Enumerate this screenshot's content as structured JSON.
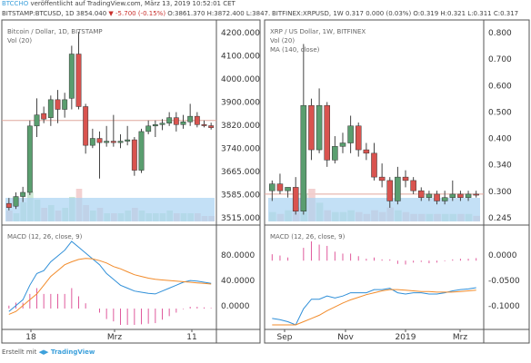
{
  "header": {
    "user": "BTCCHO",
    "published": "veröffentlicht auf TradingView.com, März 13, 2019 10:52:01 CET"
  },
  "left_info": {
    "symbol": "BITSTAMP:BTCUSD, 1D",
    "last": "3854.040",
    "change": "▼ -5.700 (-0.15%)",
    "ohlc": "O:3861.370 H:3872.400 L:3847."
  },
  "right_info": {
    "symbol": "BITFINEX:XRPUSD, 1W",
    "ohlc": "0.317 0.000 (0.03%) O:0.319 H:0.321 L:0.311 C:0.317"
  },
  "left_chart": {
    "title": "Bitcoin / Dollar, 1D, BITSTAMP",
    "vol_label": "Vol (20)",
    "price_ticks": [
      "4200.000",
      "4100.000",
      "4000.000",
      "3900.000",
      "3820.000",
      "3740.000",
      "3665.000",
      "3585.000",
      "3515.000"
    ],
    "macd_label": "MACD (12, 26, close, 9)",
    "macd_ticks": [
      "80.0000",
      "40.0000",
      "0.0000"
    ],
    "x_ticks": [
      "18",
      "Mrz",
      "11"
    ]
  },
  "right_chart": {
    "title": "XRP / US Dollar, 1W, BITFINEX",
    "vol_label": "Vol (20)",
    "ma_label": "MA (140, close)",
    "price_ticks": [
      "0.800",
      "0.700",
      "0.600",
      "0.500",
      "0.400",
      "0.340",
      "0.300",
      "0.245"
    ],
    "macd_label": "MACD (12, 26, close, 9)",
    "macd_ticks": [
      "0.0000",
      "-0.0500",
      "-0.1000"
    ],
    "x_ticks": [
      "Sep",
      "Nov",
      "2019",
      "Mrz"
    ]
  },
  "chart_data": [
    {
      "type": "candlestick",
      "title": "Bitcoin / Dollar, 1D, BITSTAMP",
      "ylim": [
        3515,
        4230
      ],
      "candles": [
        {
          "o": 3580,
          "h": 3600,
          "l": 3555,
          "c": 3565
        },
        {
          "o": 3570,
          "h": 3620,
          "l": 3560,
          "c": 3605
        },
        {
          "o": 3605,
          "h": 3640,
          "l": 3585,
          "c": 3620
        },
        {
          "o": 3620,
          "h": 3880,
          "l": 3610,
          "c": 3860
        },
        {
          "o": 3860,
          "h": 3960,
          "l": 3820,
          "c": 3900
        },
        {
          "o": 3905,
          "h": 3930,
          "l": 3870,
          "c": 3885
        },
        {
          "o": 3890,
          "h": 3970,
          "l": 3860,
          "c": 3955
        },
        {
          "o": 3955,
          "h": 3990,
          "l": 3870,
          "c": 3920
        },
        {
          "o": 3920,
          "h": 3980,
          "l": 3890,
          "c": 3955
        },
        {
          "o": 3960,
          "h": 4150,
          "l": 3920,
          "c": 4120
        },
        {
          "o": 4120,
          "h": 4200,
          "l": 3920,
          "c": 3930
        },
        {
          "o": 3930,
          "h": 3940,
          "l": 3760,
          "c": 3790
        },
        {
          "o": 3790,
          "h": 3850,
          "l": 3780,
          "c": 3815
        },
        {
          "o": 3815,
          "h": 3840,
          "l": 3670,
          "c": 3800
        },
        {
          "o": 3800,
          "h": 3860,
          "l": 3785,
          "c": 3805
        },
        {
          "o": 3805,
          "h": 3900,
          "l": 3785,
          "c": 3800
        },
        {
          "o": 3800,
          "h": 3830,
          "l": 3780,
          "c": 3805
        },
        {
          "o": 3805,
          "h": 3860,
          "l": 3790,
          "c": 3810
        },
        {
          "o": 3810,
          "h": 3820,
          "l": 3680,
          "c": 3700
        },
        {
          "o": 3700,
          "h": 3850,
          "l": 3690,
          "c": 3840
        },
        {
          "o": 3840,
          "h": 3880,
          "l": 3830,
          "c": 3860
        },
        {
          "o": 3860,
          "h": 3880,
          "l": 3820,
          "c": 3865
        },
        {
          "o": 3865,
          "h": 3885,
          "l": 3845,
          "c": 3870
        },
        {
          "o": 3870,
          "h": 3910,
          "l": 3860,
          "c": 3890
        },
        {
          "o": 3890,
          "h": 3910,
          "l": 3840,
          "c": 3865
        },
        {
          "o": 3865,
          "h": 3900,
          "l": 3850,
          "c": 3875
        },
        {
          "o": 3875,
          "h": 3940,
          "l": 3860,
          "c": 3895
        },
        {
          "o": 3895,
          "h": 3910,
          "l": 3855,
          "c": 3865
        },
        {
          "o": 3865,
          "h": 3880,
          "l": 3855,
          "c": 3861
        },
        {
          "o": 3861,
          "h": 3872,
          "l": 3847,
          "c": 3854
        }
      ],
      "volume": [
        20,
        15,
        35,
        55,
        40,
        25,
        30,
        20,
        25,
        45,
        60,
        30,
        20,
        25,
        15,
        15,
        15,
        20,
        25,
        20,
        15,
        15,
        15,
        20,
        15,
        15,
        15,
        15,
        10,
        10
      ],
      "macd": [
        -5,
        5,
        15,
        40,
        60,
        65,
        80,
        90,
        100,
        115,
        105,
        95,
        85,
        75,
        60,
        50,
        40,
        35,
        30,
        28,
        26,
        25,
        30,
        35,
        40,
        45,
        48,
        47,
        45,
        43
      ],
      "signal": [
        -10,
        -5,
        5,
        15,
        25,
        40,
        55,
        65,
        75,
        80,
        84,
        86,
        85,
        82,
        78,
        72,
        68,
        63,
        58,
        55,
        52,
        50,
        49,
        48,
        47,
        46,
        45,
        44,
        43,
        42
      ],
      "histogram": [
        5,
        10,
        10,
        25,
        35,
        25,
        25,
        25,
        25,
        35,
        21,
        9,
        0,
        -7,
        -18,
        -22,
        -28,
        -28,
        -28,
        -27,
        -26,
        -25,
        -19,
        -13,
        -7,
        -1,
        3,
        3,
        2,
        1
      ]
    },
    {
      "type": "candlestick",
      "title": "XRP / US Dollar, 1W, BITFINEX",
      "ylim": [
        0.24,
        0.82
      ],
      "candles": [
        {
          "o": 0.33,
          "h": 0.36,
          "l": 0.3,
          "c": 0.35
        },
        {
          "o": 0.35,
          "h": 0.38,
          "l": 0.32,
          "c": 0.33
        },
        {
          "o": 0.33,
          "h": 0.34,
          "l": 0.31,
          "c": 0.34
        },
        {
          "o": 0.34,
          "h": 0.37,
          "l": 0.26,
          "c": 0.27
        },
        {
          "o": 0.27,
          "h": 0.76,
          "l": 0.26,
          "c": 0.58
        },
        {
          "o": 0.58,
          "h": 0.6,
          "l": 0.42,
          "c": 0.45
        },
        {
          "o": 0.45,
          "h": 0.63,
          "l": 0.44,
          "c": 0.58
        },
        {
          "o": 0.58,
          "h": 0.59,
          "l": 0.4,
          "c": 0.42
        },
        {
          "o": 0.42,
          "h": 0.49,
          "l": 0.41,
          "c": 0.46
        },
        {
          "o": 0.46,
          "h": 0.5,
          "l": 0.44,
          "c": 0.47
        },
        {
          "o": 0.47,
          "h": 0.55,
          "l": 0.44,
          "c": 0.52
        },
        {
          "o": 0.52,
          "h": 0.53,
          "l": 0.43,
          "c": 0.45
        },
        {
          "o": 0.45,
          "h": 0.47,
          "l": 0.42,
          "c": 0.44
        },
        {
          "o": 0.44,
          "h": 0.47,
          "l": 0.36,
          "c": 0.37
        },
        {
          "o": 0.37,
          "h": 0.41,
          "l": 0.34,
          "c": 0.36
        },
        {
          "o": 0.36,
          "h": 0.37,
          "l": 0.28,
          "c": 0.3
        },
        {
          "o": 0.3,
          "h": 0.4,
          "l": 0.29,
          "c": 0.37
        },
        {
          "o": 0.37,
          "h": 0.39,
          "l": 0.34,
          "c": 0.36
        },
        {
          "o": 0.36,
          "h": 0.37,
          "l": 0.32,
          "c": 0.33
        },
        {
          "o": 0.33,
          "h": 0.34,
          "l": 0.3,
          "c": 0.31
        },
        {
          "o": 0.31,
          "h": 0.33,
          "l": 0.3,
          "c": 0.32
        },
        {
          "o": 0.32,
          "h": 0.33,
          "l": 0.29,
          "c": 0.3
        },
        {
          "o": 0.3,
          "h": 0.33,
          "l": 0.29,
          "c": 0.31
        },
        {
          "o": 0.31,
          "h": 0.36,
          "l": 0.3,
          "c": 0.32
        },
        {
          "o": 0.32,
          "h": 0.33,
          "l": 0.3,
          "c": 0.31
        },
        {
          "o": 0.31,
          "h": 0.33,
          "l": 0.3,
          "c": 0.32
        },
        {
          "o": 0.32,
          "h": 0.33,
          "l": 0.31,
          "c": 0.317
        }
      ],
      "ma": 0.32,
      "volume": [
        10,
        8,
        12,
        15,
        30,
        35,
        20,
        12,
        10,
        10,
        12,
        10,
        8,
        12,
        10,
        15,
        12,
        10,
        8,
        8,
        8,
        8,
        8,
        8,
        8,
        8,
        6
      ],
      "macd": [
        -0.09,
        -0.092,
        -0.095,
        -0.1,
        -0.075,
        -0.06,
        -0.06,
        -0.055,
        -0.058,
        -0.055,
        -0.05,
        -0.05,
        -0.05,
        -0.045,
        -0.045,
        -0.043,
        -0.05,
        -0.052,
        -0.05,
        -0.05,
        -0.052,
        -0.052,
        -0.05,
        -0.047,
        -0.045,
        -0.044,
        -0.042
      ],
      "signal": [
        -0.1,
        -0.1,
        -0.1,
        -0.1,
        -0.095,
        -0.09,
        -0.085,
        -0.078,
        -0.072,
        -0.066,
        -0.061,
        -0.057,
        -0.053,
        -0.05,
        -0.047,
        -0.045,
        -0.045,
        -0.046,
        -0.047,
        -0.048,
        -0.048,
        -0.049,
        -0.049,
        -0.049,
        -0.048,
        -0.047,
        -0.046
      ],
      "histogram": [
        0.01,
        0.008,
        0.005,
        0,
        0.02,
        0.03,
        0.025,
        0.023,
        0.014,
        0.011,
        0.011,
        0.007,
        0.003,
        0.005,
        0.002,
        0.002,
        -0.005,
        -0.006,
        -0.003,
        -0.002,
        -0.004,
        -0.003,
        -0.001,
        0.002,
        0.003,
        0.003,
        0.004
      ]
    }
  ]
}
